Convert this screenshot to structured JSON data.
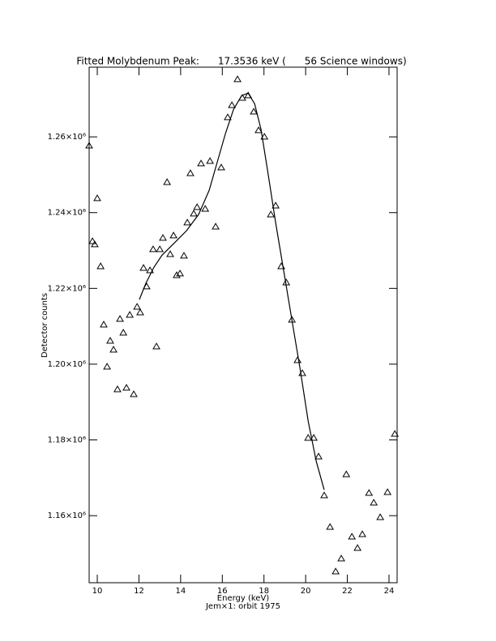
{
  "chart_data": {
    "type": "scatter",
    "title": "Fitted Molybdenum Peak:      17.3536 keV (      56 Science windows)",
    "xlabel": "Energy (keV)",
    "subtitle": "Jem×1: orbit 1975",
    "ylabel": "Detector counts",
    "xlim": [
      9.61,
      24.39
    ],
    "ylim": [
      1142300,
      1278400
    ],
    "xticks": [
      10,
      12,
      14,
      16,
      18,
      20,
      22,
      24
    ],
    "yticks": [
      {
        "value": 1160000,
        "label": "1.16×10⁶"
      },
      {
        "value": 1180000,
        "label": "1.18×10⁶"
      },
      {
        "value": 1200000,
        "label": "1.20×10⁶"
      },
      {
        "value": 1220000,
        "label": "1.22×10⁶"
      },
      {
        "value": 1240000,
        "label": "1.24×10⁶"
      },
      {
        "value": 1260000,
        "label": "1.26×10⁶"
      }
    ],
    "color": "#000000",
    "series": [
      {
        "style": "markers",
        "x": [
          9.61,
          9.77,
          9.88,
          10.0,
          10.16,
          10.31,
          10.47,
          10.62,
          10.78,
          10.97,
          11.09,
          11.25,
          11.4,
          11.56,
          11.75,
          11.91,
          12.06,
          12.22,
          12.37,
          12.53,
          12.68,
          12.84,
          13.0,
          13.15,
          13.35,
          13.5,
          13.66,
          13.81,
          13.97,
          14.16,
          14.32,
          14.47,
          14.63,
          14.79,
          14.98,
          15.18,
          15.41,
          15.68,
          15.95,
          16.26,
          16.46,
          16.73,
          16.96,
          17.24,
          17.51,
          17.74,
          18.02,
          18.33,
          18.56,
          18.83,
          19.07,
          19.34,
          19.61,
          19.84,
          20.12,
          20.39,
          20.62,
          20.89,
          21.17,
          21.44,
          21.71,
          21.95,
          22.22,
          22.49,
          22.72,
          23.04,
          23.27,
          23.58,
          23.93,
          24.28
        ],
        "values": [
          1257650,
          1232430,
          1231580,
          1243760,
          1225810,
          1210420,
          1199310,
          1206150,
          1203800,
          1193330,
          1211920,
          1208290,
          1193750,
          1212990,
          1192040,
          1215120,
          1213630,
          1225380,
          1220470,
          1224740,
          1230300,
          1204650,
          1230300,
          1233290,
          1248030,
          1229010,
          1233930,
          1223460,
          1223890,
          1228590,
          1237350,
          1250380,
          1239700,
          1241410,
          1252950,
          1240980,
          1253590,
          1236280,
          1251880,
          1265130,
          1268330,
          1275170,
          1270260,
          1270900,
          1266620,
          1261710,
          1260000,
          1239480,
          1241830,
          1225810,
          1221530,
          1211700,
          1201020,
          1197600,
          1180510,
          1180510,
          1175590,
          1165330,
          1157000,
          1145250,
          1148660,
          1170890,
          1154430,
          1151440,
          1155070,
          1165970,
          1163410,
          1159560,
          1166180,
          1181570
        ]
      },
      {
        "style": "line",
        "x": [
          12.02,
          12.33,
          12.72,
          13.11,
          13.7,
          14.28,
          14.86,
          15.37,
          15.76,
          16.15,
          16.54,
          16.93,
          17.24,
          17.55,
          17.86,
          18.17,
          18.56,
          18.95,
          19.34,
          19.73,
          20.12,
          20.51,
          20.89
        ],
        "values": [
          1217050,
          1221320,
          1225600,
          1228800,
          1232000,
          1235210,
          1239480,
          1245900,
          1253380,
          1260850,
          1267270,
          1270900,
          1271540,
          1268760,
          1261920,
          1251240,
          1237350,
          1224530,
          1211700,
          1198880,
          1185000,
          1174310,
          1166830
        ]
      }
    ]
  }
}
